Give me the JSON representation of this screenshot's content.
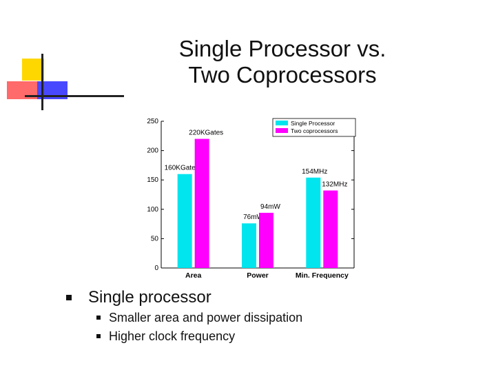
{
  "slide": {
    "title_line1": "Single Processor vs.",
    "title_line2": "Two Coprocessors"
  },
  "bullets": {
    "main": "Single processor",
    "sub": [
      "Smaller area and power dissipation",
      "Higher clock frequency"
    ]
  },
  "colors": {
    "single": "#00e5ee",
    "two": "#ff00ff",
    "logo_yellow": "#ffd700",
    "logo_red": "#ff5a5a",
    "logo_blue": "#4040ff"
  },
  "chart_data": {
    "type": "bar",
    "categories": [
      "Area",
      "Power",
      "Min. Frequency"
    ],
    "series": [
      {
        "name": "Single Processor",
        "values": [
          160,
          76,
          154
        ],
        "labels": [
          "160KGates",
          "76mW",
          "154MHz"
        ]
      },
      {
        "name": "Two coprocessors",
        "values": [
          220,
          94,
          132
        ],
        "labels": [
          "220KGates",
          "94mW",
          "132MHz"
        ]
      }
    ],
    "yticks": [
      0,
      50,
      100,
      150,
      200,
      250
    ],
    "ylim": [
      0,
      250
    ],
    "legend": "top-right"
  }
}
